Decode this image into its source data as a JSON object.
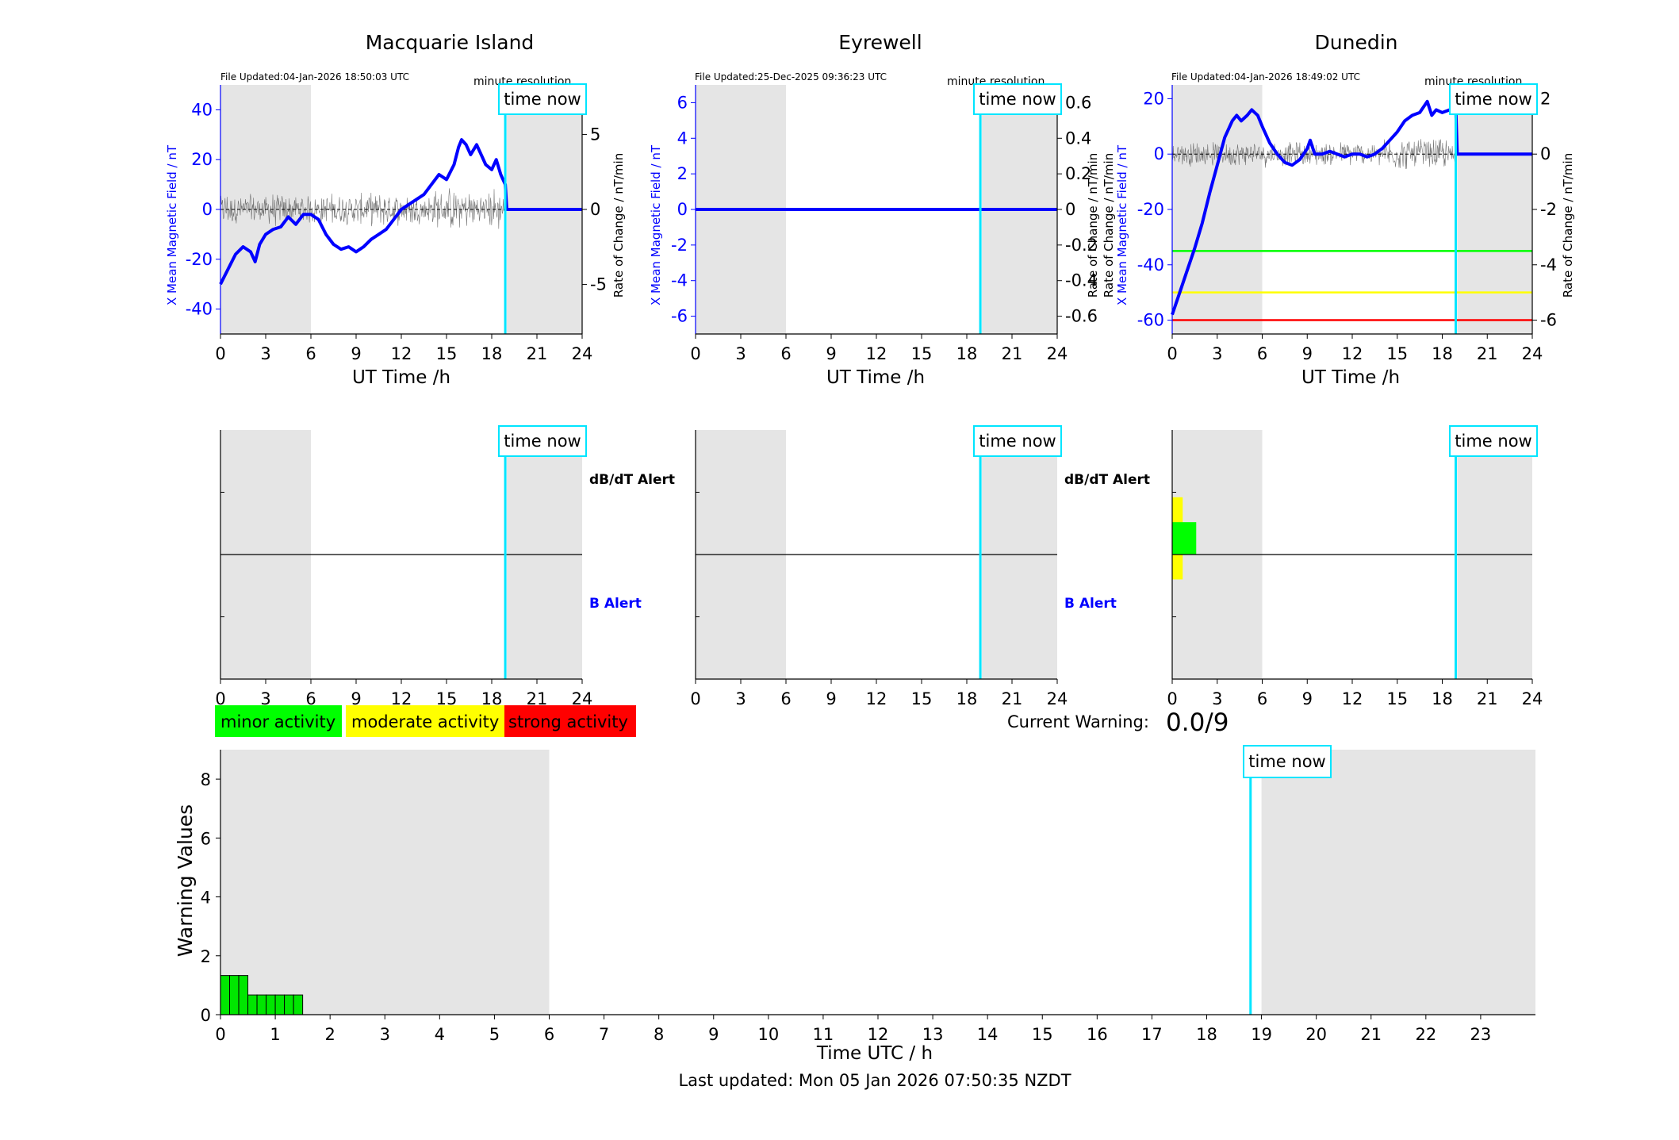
{
  "colors": {
    "blue": "#0000ff",
    "gray_trace": "#555555",
    "night_shade": "#e5e5e5",
    "time_now": "#00e5ff",
    "minor": "#00ff00",
    "moderate": "#ffff00",
    "strong": "#ff0000",
    "warn_bar": "#00e600"
  },
  "page": {
    "current_warning_label": "Current Warning:",
    "current_warning_value": "0.0/9",
    "last_updated": "Last updated: Mon 05 Jan 2026 07:50:35 NZDT"
  },
  "legend": {
    "minor": "minor activity",
    "moderate": "moderate activity",
    "strong": "strong activity"
  },
  "chart_data": [
    {
      "type": "line",
      "station": "Macquarie Island",
      "file_updated": "File Updated:04-Jan-2026 18:50:03 UTC",
      "resolution": "minute resolution",
      "time_now_label": "time now",
      "time_now_h": 18.9,
      "night_h": [
        [
          0,
          6
        ],
        [
          19,
          24
        ]
      ],
      "xlabel": "UT Time /h",
      "xlim": [
        0,
        24
      ],
      "xticks": [
        0,
        3,
        6,
        9,
        12,
        15,
        18,
        21,
        24
      ],
      "ylabel_left": "X Mean Magnetic Field / nT",
      "ylabel_right": "Rate of Change / nT/min",
      "ylim_left": [
        -50,
        50
      ],
      "yticks_left": [
        -40,
        -20,
        0,
        20,
        40
      ],
      "ylim_right": [
        -8.3,
        8.3
      ],
      "yticks_right": [
        -5,
        0,
        5
      ],
      "rate_amplitude": 1.2,
      "series_field": [
        [
          0,
          -30
        ],
        [
          0.5,
          -24
        ],
        [
          1,
          -18
        ],
        [
          1.5,
          -15
        ],
        [
          2,
          -17
        ],
        [
          2.3,
          -21
        ],
        [
          2.6,
          -14
        ],
        [
          3,
          -10
        ],
        [
          3.5,
          -8
        ],
        [
          4,
          -7
        ],
        [
          4.5,
          -3
        ],
        [
          5,
          -6
        ],
        [
          5.5,
          -2
        ],
        [
          6,
          -2
        ],
        [
          6.5,
          -4
        ],
        [
          7,
          -10
        ],
        [
          7.5,
          -14
        ],
        [
          8,
          -16
        ],
        [
          8.5,
          -15
        ],
        [
          9,
          -17
        ],
        [
          9.5,
          -15
        ],
        [
          10,
          -12
        ],
        [
          10.5,
          -10
        ],
        [
          11,
          -8
        ],
        [
          11.5,
          -4
        ],
        [
          12,
          0
        ],
        [
          12.5,
          2
        ],
        [
          13,
          4
        ],
        [
          13.5,
          6
        ],
        [
          14,
          10
        ],
        [
          14.5,
          14
        ],
        [
          15,
          12
        ],
        [
          15.5,
          18
        ],
        [
          15.8,
          25
        ],
        [
          16,
          28
        ],
        [
          16.3,
          26
        ],
        [
          16.6,
          22
        ],
        [
          17,
          26
        ],
        [
          17.3,
          22
        ],
        [
          17.6,
          18
        ],
        [
          18,
          16
        ],
        [
          18.3,
          20
        ],
        [
          18.6,
          14
        ],
        [
          18.9,
          10
        ],
        [
          19,
          0
        ],
        [
          24,
          0
        ]
      ],
      "alert_bars": []
    },
    {
      "type": "line",
      "station": "Eyrewell",
      "file_updated": "File Updated:25-Dec-2025 09:36:23 UTC",
      "resolution": "minute resolution",
      "time_now_label": "time now",
      "time_now_h": 18.9,
      "night_h": [
        [
          0,
          6
        ],
        [
          19,
          24
        ]
      ],
      "xlabel": "UT Time /h",
      "xlim": [
        0,
        24
      ],
      "xticks": [
        0,
        3,
        6,
        9,
        12,
        15,
        18,
        21,
        24
      ],
      "ylabel_left": "X Mean Magnetic Field / nT",
      "ylabel_right": "Rate of Change / nT/min",
      "ylim_left": [
        -7,
        7
      ],
      "yticks_left": [
        -6,
        -4,
        -2,
        0,
        2,
        4,
        6
      ],
      "ylim_right": [
        -0.7,
        0.7
      ],
      "yticks_right": [
        -0.6,
        -0.4,
        -0.2,
        0,
        0.2,
        0.4,
        0.6
      ],
      "rate_amplitude": 0,
      "series_field": [
        [
          0,
          0
        ],
        [
          24,
          0
        ]
      ],
      "alert_bars": []
    },
    {
      "type": "line",
      "station": "Dunedin",
      "file_updated": "File Updated:04-Jan-2026 18:49:02 UTC",
      "resolution": "minute resolution",
      "time_now_label": "time now",
      "time_now_h": 18.9,
      "night_h": [
        [
          0,
          6
        ],
        [
          19,
          24
        ]
      ],
      "xlabel": "UT Time /h",
      "xlim": [
        0,
        24
      ],
      "xticks": [
        0,
        3,
        6,
        9,
        12,
        15,
        18,
        21,
        24
      ],
      "ylabel_left": "X Mean Magnetic Field / nT",
      "ylabel_right": "Rate of Change / nT/min",
      "ylim_left": [
        -65,
        25
      ],
      "yticks_left": [
        -60,
        -40,
        -20,
        0,
        20
      ],
      "ylim_right": [
        -6.5,
        2.5
      ],
      "yticks_right": [
        -6,
        -4,
        -2,
        0,
        2
      ],
      "rate_amplitude": 0.5,
      "thresholds": [
        {
          "value": -35,
          "color": "#00ff00"
        },
        {
          "value": -50,
          "color": "#ffff00"
        },
        {
          "value": -60,
          "color": "#ff0000"
        }
      ],
      "series_field": [
        [
          0,
          -58
        ],
        [
          0.5,
          -50
        ],
        [
          1,
          -42
        ],
        [
          1.5,
          -34
        ],
        [
          2,
          -25
        ],
        [
          2.5,
          -14
        ],
        [
          3,
          -4
        ],
        [
          3.5,
          6
        ],
        [
          4,
          12
        ],
        [
          4.3,
          14
        ],
        [
          4.6,
          12
        ],
        [
          5,
          14
        ],
        [
          5.3,
          16
        ],
        [
          5.7,
          14
        ],
        [
          6,
          10
        ],
        [
          6.5,
          4
        ],
        [
          7,
          0
        ],
        [
          7.5,
          -3
        ],
        [
          8,
          -4
        ],
        [
          8.5,
          -2
        ],
        [
          9,
          2
        ],
        [
          9.2,
          5
        ],
        [
          9.5,
          0
        ],
        [
          10,
          0
        ],
        [
          10.5,
          1
        ],
        [
          11,
          0
        ],
        [
          11.5,
          -1
        ],
        [
          12,
          0
        ],
        [
          12.5,
          0
        ],
        [
          13,
          -1
        ],
        [
          13.5,
          0
        ],
        [
          14,
          2
        ],
        [
          14.5,
          5
        ],
        [
          15,
          8
        ],
        [
          15.5,
          12
        ],
        [
          16,
          14
        ],
        [
          16.5,
          15
        ],
        [
          17,
          19
        ],
        [
          17.3,
          14
        ],
        [
          17.6,
          16
        ],
        [
          18,
          15
        ],
        [
          18.5,
          16
        ],
        [
          18.9,
          17
        ],
        [
          19,
          0
        ],
        [
          24,
          0
        ]
      ],
      "alert_bars": [
        {
          "h0": 0.0,
          "h1": 0.7,
          "level_lo": 0.4,
          "level_hi": 0.73,
          "color": "#ffff00"
        },
        {
          "h0": 0.0,
          "h1": 1.6,
          "level_lo": 0.5,
          "level_hi": 0.63,
          "color": "#00ff00"
        }
      ]
    },
    {
      "type": "bar",
      "title": "",
      "xlabel": "Time UTC / h",
      "ylabel": "Warning Values",
      "xlim": [
        0,
        24
      ],
      "xticks": [
        0,
        1,
        2,
        3,
        4,
        5,
        6,
        7,
        8,
        9,
        10,
        11,
        12,
        13,
        14,
        15,
        16,
        17,
        18,
        19,
        20,
        21,
        22,
        23
      ],
      "ylim": [
        0,
        9
      ],
      "yticks": [
        0,
        2,
        4,
        6,
        8
      ],
      "night_h": [
        [
          0,
          6
        ],
        [
          19,
          24
        ]
      ],
      "time_now_label": "time now",
      "time_now_h": 18.8,
      "bins": [
        {
          "x0": 0.0,
          "x1": 0.5,
          "value": 1.33
        },
        {
          "x0": 0.5,
          "x1": 1.5,
          "value": 0.67
        }
      ],
      "bar_subdivisions_per_hour": 6
    }
  ],
  "alert_panels": {
    "dbdt_label": "dB/dT Alert",
    "b_label": "B Alert"
  }
}
